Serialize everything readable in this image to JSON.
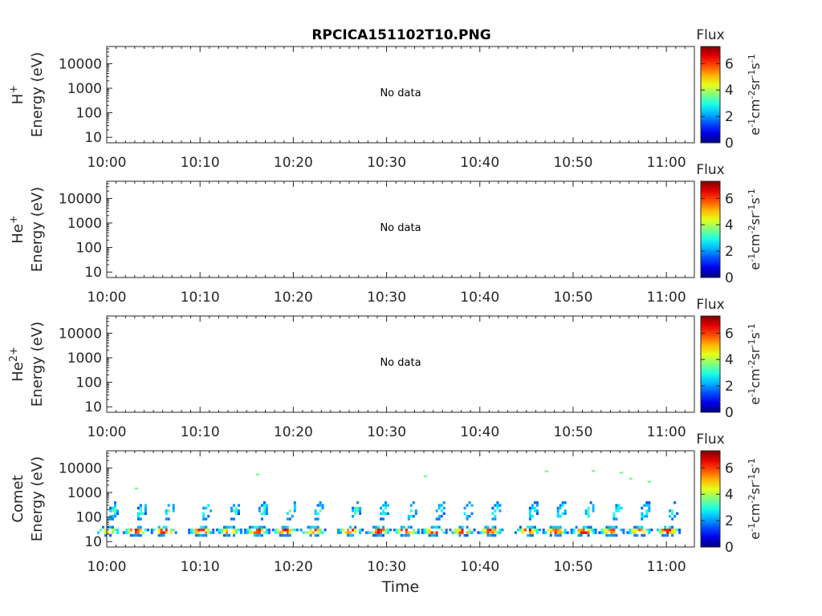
{
  "title": "RPCICA151102T10.PNG",
  "colors": {
    "axis": "#262626",
    "data_grid_bg": "#ffffff"
  },
  "chart_data": [
    {
      "type": "heatmap",
      "panel": "H+",
      "species_label": "H",
      "species_sup": "+",
      "ylabel": "Energy (eV)",
      "yscale": "log",
      "ylim": [
        6,
        50000
      ],
      "yticks": [
        "10",
        "100",
        "1000",
        "10000"
      ],
      "xlim": [
        "10:00",
        "11:03"
      ],
      "xticks": [
        "10:00",
        "10:10",
        "10:20",
        "10:30",
        "10:40",
        "10:50",
        "11:00"
      ],
      "message": "No data",
      "colorbar": {
        "title": "Flux",
        "range": [
          0,
          7.3
        ],
        "ticks": [
          "0",
          "2",
          "4",
          "6"
        ],
        "label": "eV-1cm-2sr-1s-1",
        "colormap": "jet"
      }
    },
    {
      "type": "heatmap",
      "panel": "He+",
      "species_label": "He",
      "species_sup": "+",
      "ylabel": "Energy (eV)",
      "yscale": "log",
      "ylim": [
        6,
        50000
      ],
      "yticks": [
        "10",
        "100",
        "1000",
        "10000"
      ],
      "xlim": [
        "10:00",
        "11:03"
      ],
      "xticks": [
        "10:00",
        "10:10",
        "10:20",
        "10:30",
        "10:40",
        "10:50",
        "11:00"
      ],
      "message": "No data",
      "colorbar": {
        "title": "Flux",
        "range": [
          0,
          7.3
        ],
        "ticks": [
          "0",
          "2",
          "4",
          "6"
        ],
        "label": "eV-1cm-2sr-1s-1",
        "colormap": "jet"
      }
    },
    {
      "type": "heatmap",
      "panel": "He2+",
      "species_label": "He",
      "species_sup": "2+",
      "ylabel": "Energy (eV)",
      "yscale": "log",
      "ylim": [
        6,
        50000
      ],
      "yticks": [
        "10",
        "100",
        "1000",
        "10000"
      ],
      "xlim": [
        "10:00",
        "11:03"
      ],
      "xticks": [
        "10:00",
        "10:10",
        "10:20",
        "10:30",
        "10:40",
        "10:50",
        "11:00"
      ],
      "message": "No data",
      "colorbar": {
        "title": "Flux",
        "range": [
          0,
          7.3
        ],
        "ticks": [
          "0",
          "2",
          "4",
          "6"
        ],
        "label": "eV-1cm-2sr-1s-1",
        "colormap": "jet"
      }
    },
    {
      "type": "heatmap",
      "panel": "Comet",
      "species_label": "Comet",
      "species_sup": "",
      "ylabel": "Energy (eV)",
      "xlabel": "Time",
      "yscale": "log",
      "ylim": [
        6,
        50000
      ],
      "yticks": [
        "10",
        "100",
        "1000",
        "10000"
      ],
      "xlim": [
        "10:00",
        "11:03"
      ],
      "xticks": [
        "10:00",
        "10:10",
        "10:20",
        "10:30",
        "10:40",
        "10:50",
        "11:00"
      ],
      "colorbar": {
        "title": "Flux",
        "range": [
          0,
          7.3
        ],
        "ticks": [
          "0",
          "2",
          "4",
          "6"
        ],
        "label": "eV-1cm-2sr-1s-1",
        "colormap": "jet"
      },
      "bursts": [
        {
          "t": "10:00",
          "flux": 5.8
        },
        {
          "t": "10:03",
          "flux": 6.6
        },
        {
          "t": "10:06",
          "flux": 6.8
        },
        {
          "t": "10:10",
          "flux": 6.7
        },
        {
          "t": "10:13",
          "flux": 6.5
        },
        {
          "t": "10:16",
          "flux": 6.9
        },
        {
          "t": "10:19",
          "flux": 6.7
        },
        {
          "t": "10:22",
          "flux": 6.3
        },
        {
          "t": "10:26",
          "flux": 6.5
        },
        {
          "t": "10:29",
          "flux": 6.8
        },
        {
          "t": "10:32",
          "flux": 6.8
        },
        {
          "t": "10:35",
          "flux": 6.6
        },
        {
          "t": "10:38",
          "flux": 6.4
        },
        {
          "t": "10:41",
          "flux": 6.5
        },
        {
          "t": "10:45",
          "flux": 6.9
        },
        {
          "t": "10:48",
          "flux": 6.5
        },
        {
          "t": "10:51",
          "flux": 7.0
        },
        {
          "t": "10:54",
          "flux": 6.6
        },
        {
          "t": "10:57",
          "flux": 6.4
        },
        {
          "t": "11:00",
          "flux": 6.6
        }
      ],
      "high_energy_points": [
        {
          "t": "10:03",
          "e": 1600
        },
        {
          "t": "10:16",
          "e": 6000
        },
        {
          "t": "10:34",
          "e": 5000
        },
        {
          "t": "10:47",
          "e": 8000
        },
        {
          "t": "10:52",
          "e": 8200
        },
        {
          "t": "10:55",
          "e": 7000
        },
        {
          "t": "10:56",
          "e": 4000
        },
        {
          "t": "10:58",
          "e": 3000
        }
      ]
    }
  ]
}
